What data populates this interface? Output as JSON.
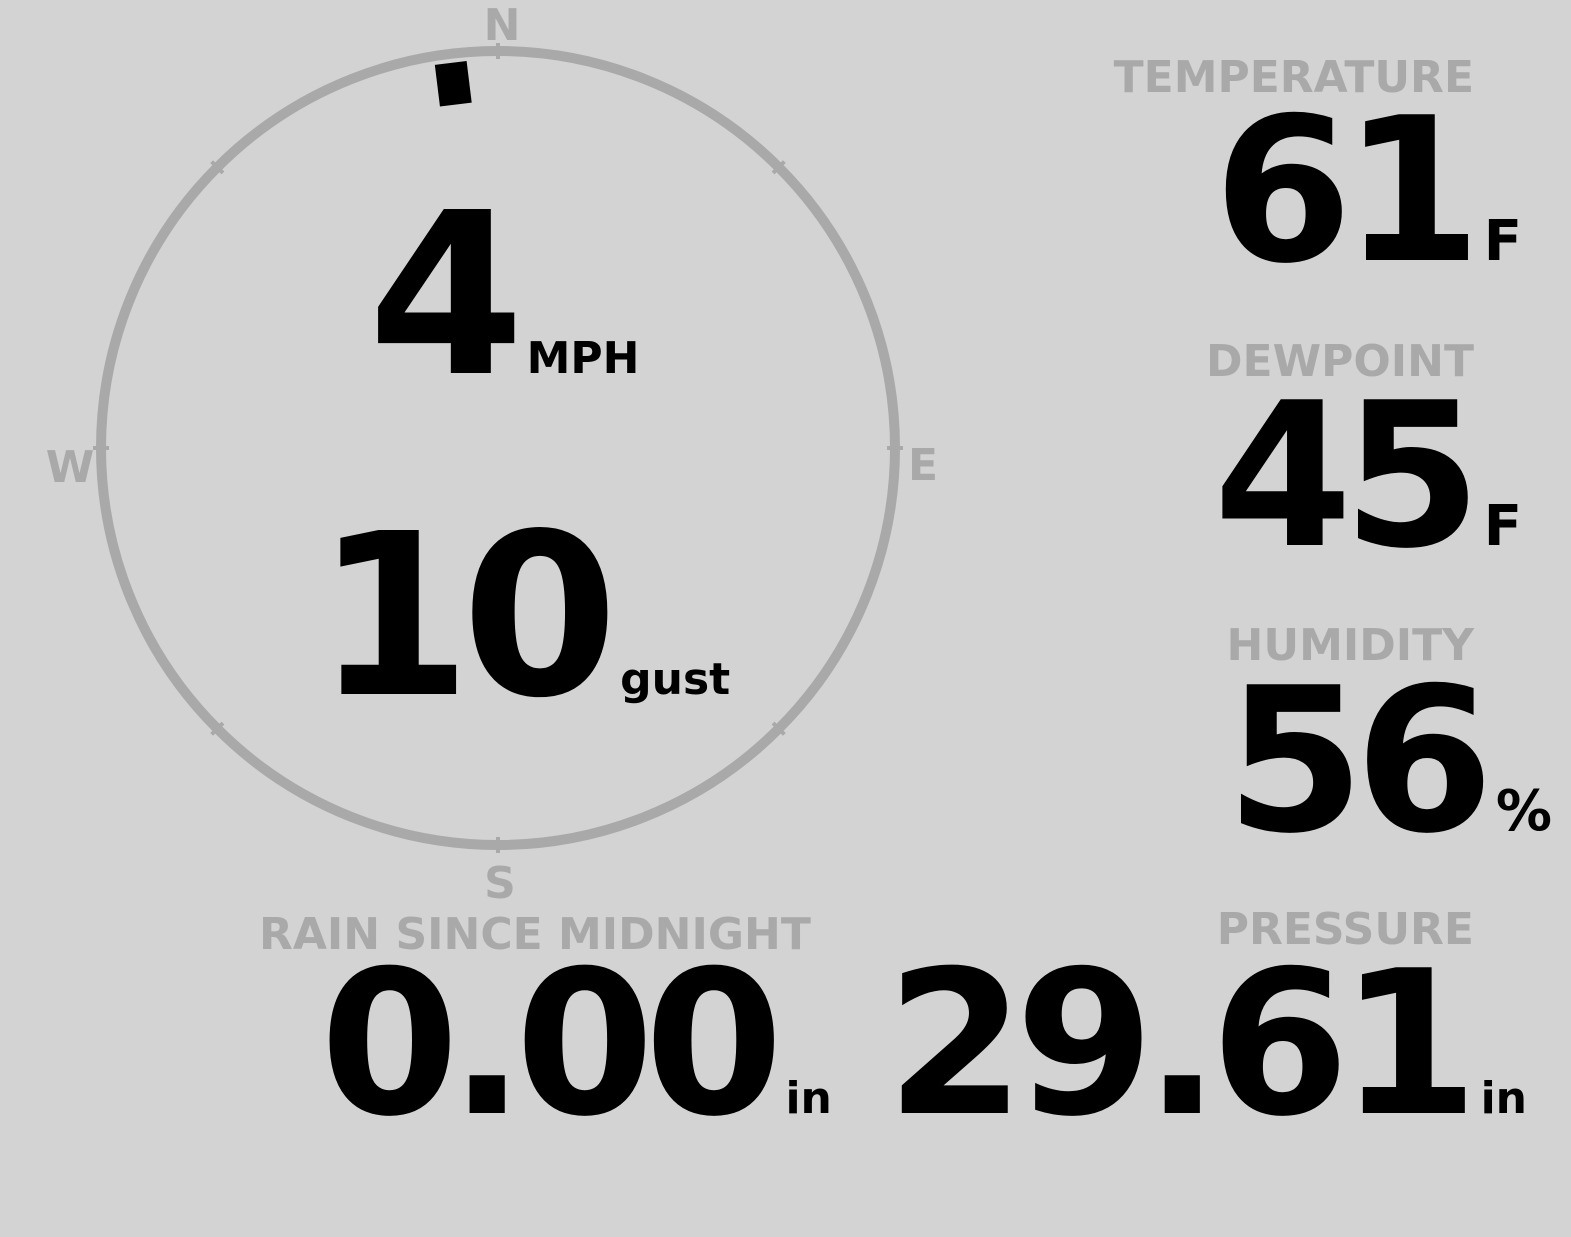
{
  "colors": {
    "background": "#d3d3d3",
    "muted": "#a9a9a9",
    "value": "#000000"
  },
  "wind": {
    "compass": {
      "north": "N",
      "east": "E",
      "south": "S",
      "west": "W"
    },
    "direction_degrees": 353,
    "speed": "4",
    "speed_unit": "MPH",
    "gust": "10",
    "gust_unit": "gust"
  },
  "temperature": {
    "label": "TEMPERATURE",
    "value": "61",
    "unit": "F"
  },
  "dewpoint": {
    "label": "DEWPOINT",
    "value": "45",
    "unit": "F"
  },
  "humidity": {
    "label": "HUMIDITY",
    "value": "56",
    "unit": "%"
  },
  "rain": {
    "label": "RAIN SINCE MIDNIGHT",
    "value": "0.00",
    "unit": "in"
  },
  "pressure": {
    "label": "PRESSURE",
    "value": "29.61",
    "unit": "in"
  }
}
